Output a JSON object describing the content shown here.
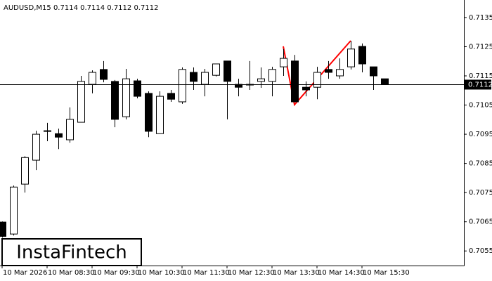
{
  "chart_data": {
    "type": "candlestick",
    "title": "AUDUSD,M15  0.7114 0.7114 0.7112 0.7112",
    "categories": [
      "10 Mar 2026",
      null,
      null,
      null,
      "10 Mar 08:30",
      null,
      null,
      null,
      "10 Mar 09:30",
      null,
      null,
      null,
      "10 Mar 10:30",
      null,
      null,
      null,
      "10 Mar 11:30",
      null,
      null,
      null,
      "10 Mar 12:30",
      null,
      null,
      null,
      "10 Mar 13:30",
      null,
      null,
      null,
      "10 Mar 14:30",
      null,
      null,
      null,
      "10 Mar 15:30",
      null,
      null
    ],
    "open": [
      0.70649,
      0.70608,
      0.70779,
      0.70861,
      0.70962,
      0.70952,
      0.70931,
      0.70991,
      0.71121,
      0.71172,
      0.71131,
      0.7101,
      0.71133,
      0.7109,
      0.70952,
      0.7109,
      0.71061,
      0.71162,
      0.71121,
      0.71152,
      0.71201,
      0.71121,
      0.71121,
      0.71131,
      0.71131,
      0.71181,
      0.71201,
      0.71111,
      0.71111,
      0.71172,
      0.7115,
      0.71181,
      0.71251,
      0.71181,
      0.7114
    ],
    "high": [
      0.70651,
      0.70774,
      0.70875,
      0.70962,
      0.70989,
      0.70969,
      0.71042,
      0.7115,
      0.71169,
      0.71201,
      0.71136,
      0.71174,
      0.7114,
      0.71097,
      0.71097,
      0.71102,
      0.71179,
      0.71179,
      0.71174,
      0.71191,
      0.71201,
      0.7114,
      0.71201,
      0.71179,
      0.71181,
      0.71242,
      0.71222,
      0.71131,
      0.71181,
      0.71201,
      0.7121,
      0.7127,
      0.71261,
      0.71181,
      0.7114
    ],
    "low": [
      0.70596,
      0.70603,
      0.7075,
      0.70827,
      0.70926,
      0.70899,
      0.70921,
      0.70991,
      0.7109,
      0.71128,
      0.70974,
      0.71001,
      0.71073,
      0.7094,
      0.70952,
      0.71061,
      0.71054,
      0.71102,
      0.7108,
      0.71148,
      0.71001,
      0.7108,
      0.71102,
      0.71109,
      0.7108,
      0.7115,
      0.71061,
      0.7108,
      0.7107,
      0.7114,
      0.7114,
      0.71172,
      0.71162,
      0.71102,
      0.71121
    ],
    "close": [
      0.706,
      0.70769,
      0.7087,
      0.7095,
      0.7096,
      0.7094,
      0.71001,
      0.71131,
      0.71162,
      0.71138,
      0.71001,
      0.7114,
      0.7108,
      0.7096,
      0.7108,
      0.7107,
      0.71172,
      0.71131,
      0.71162,
      0.71191,
      0.71131,
      0.71111,
      0.71121,
      0.7114,
      0.71172,
      0.7121,
      0.71061,
      0.71102,
      0.71162,
      0.71162,
      0.71172,
      0.71242,
      0.71191,
      0.7115,
      0.71121
    ],
    "up_color": "#ffffff",
    "down_color": "#000000",
    "ylim": [
      0.705,
      0.7141
    ],
    "yticks": [
      0.7055,
      0.7065,
      0.7075,
      0.7085,
      0.7095,
      0.7105,
      0.7115,
      0.7125,
      0.7135
    ],
    "last_price": 0.7112,
    "logo": "InstaFintech"
  }
}
